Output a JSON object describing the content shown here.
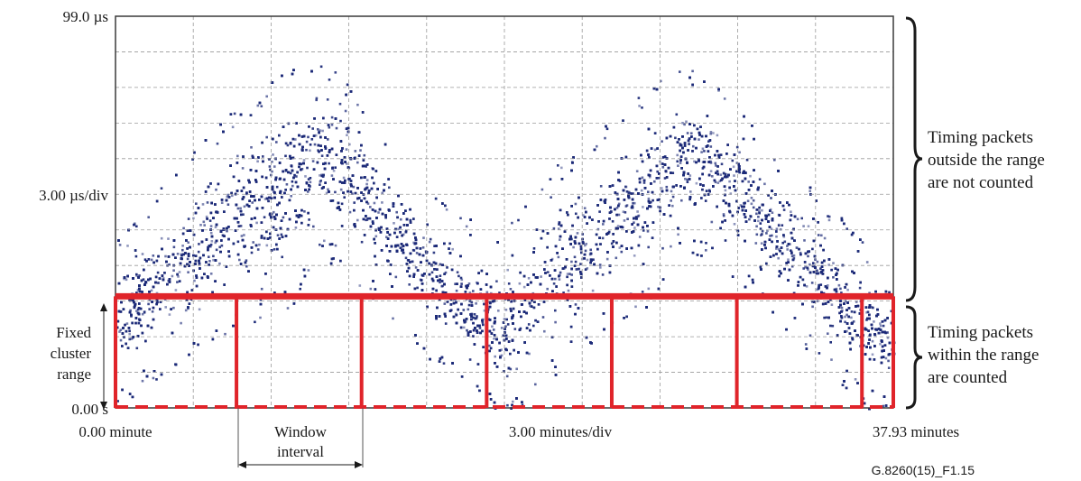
{
  "chart_data": {
    "type": "scatter",
    "title": "",
    "y_top_label": "99.0 µs",
    "y_scale_label": "3.00 µs/div",
    "y_bottom_label": "0.00 s",
    "x_left_label": "0.00 minute",
    "x_scale_label": "3.00 minutes/div",
    "x_right_label": "37.93 minutes",
    "xlim": [
      0,
      37.93
    ],
    "ylim": [
      0,
      99
    ],
    "x_unit": "minutes",
    "y_unit": "µs",
    "grid": true,
    "colors": {
      "points": "#1c2a78",
      "threshold": "#e0242a",
      "grid": "#9a9a9a"
    },
    "threshold_line_us": 28.2,
    "window_boundaries_minutes": [
      0,
      5.9,
      12,
      18.1,
      24.2,
      30.3,
      36.4,
      37.93
    ],
    "series": [
      {
        "description_for_render": "packet delay band, lower and upper envelope per sample",
        "x": [
          0,
          3,
          6,
          9,
          9.6,
          12,
          15,
          18.6,
          21,
          24,
          27,
          27.4,
          30,
          33,
          36,
          37.93
        ],
        "lower": [
          6,
          16,
          26,
          32,
          47,
          35,
          20,
          2,
          12,
          26,
          35,
          48,
          38,
          24,
          8,
          2
        ],
        "upper": [
          38,
          56,
          72,
          83,
          85,
          75,
          52,
          38,
          55,
          68,
          80,
          83,
          74,
          57,
          40,
          26
        ]
      }
    ]
  },
  "annotations": {
    "fixed_cluster_range": [
      "Fixed",
      "cluster",
      "range"
    ],
    "window_interval": [
      "Window",
      "interval"
    ],
    "outside_range": [
      "Timing packets",
      "outside the range",
      "are not counted"
    ],
    "within_range": [
      "Timing packets",
      "within the range",
      "are counted"
    ]
  },
  "figure_id": "G.8260(15)_F1.15"
}
